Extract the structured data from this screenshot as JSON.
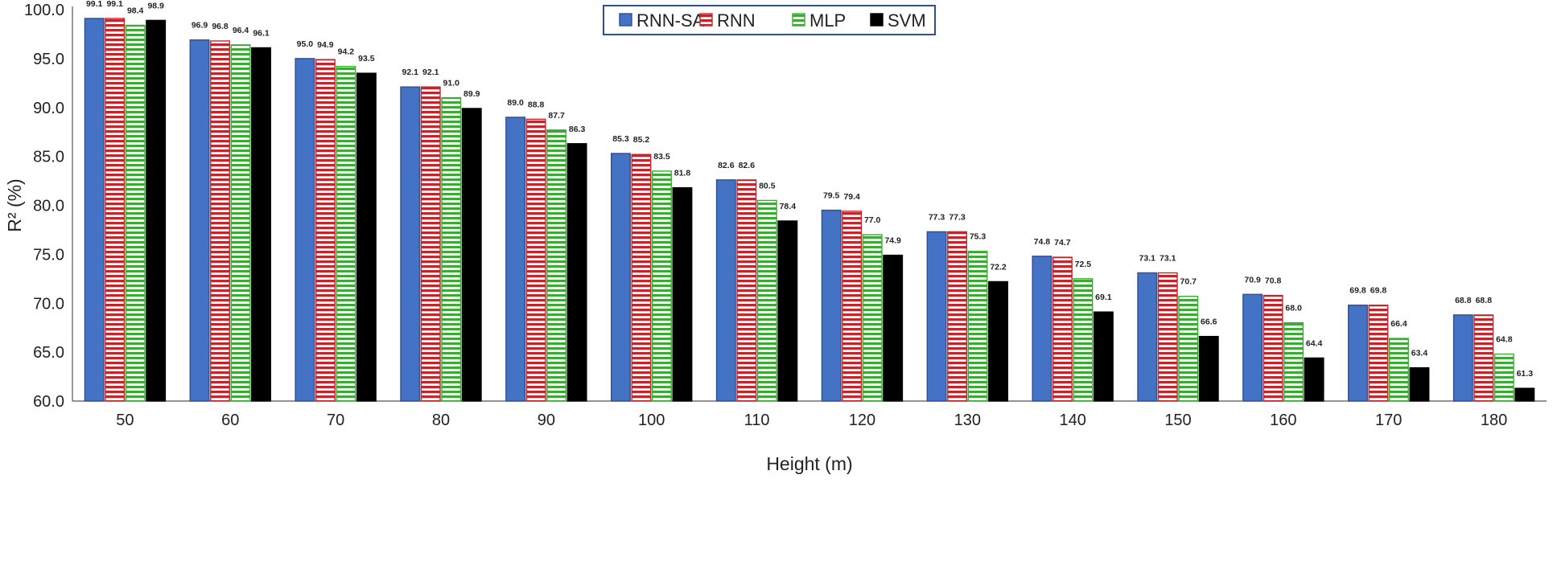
{
  "chart_data": {
    "type": "bar",
    "title": "",
    "xlabel": "Height (m)",
    "ylabel": "R² (%)",
    "ylim": [
      60,
      100
    ],
    "ytick_step": 5,
    "grid": false,
    "legend_position": "top-center",
    "categories": [
      "50",
      "60",
      "70",
      "80",
      "90",
      "100",
      "110",
      "120",
      "130",
      "140",
      "150",
      "160",
      "170",
      "180"
    ],
    "series": [
      {
        "name": "RNN-SA",
        "color": "#4472C4",
        "values": [
          99.1,
          96.9,
          95.0,
          92.1,
          89.0,
          85.3,
          82.6,
          79.5,
          77.3,
          74.8,
          73.1,
          70.9,
          69.8,
          68.8
        ]
      },
      {
        "name": "RNN",
        "color": "#C0272D",
        "values": [
          99.1,
          96.8,
          94.9,
          92.1,
          88.8,
          85.2,
          82.6,
          79.4,
          77.3,
          74.7,
          73.1,
          70.8,
          69.8,
          68.8
        ]
      },
      {
        "name": "MLP",
        "color": "#3AAA35",
        "values": [
          98.4,
          96.4,
          94.2,
          91.0,
          87.7,
          83.5,
          80.5,
          77.0,
          75.3,
          72.5,
          70.7,
          68.0,
          66.4,
          64.8
        ]
      },
      {
        "name": "SVM",
        "color": "#000000",
        "values": [
          98.9,
          96.1,
          93.5,
          89.9,
          86.3,
          81.8,
          78.4,
          74.9,
          72.2,
          69.1,
          66.6,
          64.4,
          63.4,
          61.3
        ]
      }
    ]
  }
}
